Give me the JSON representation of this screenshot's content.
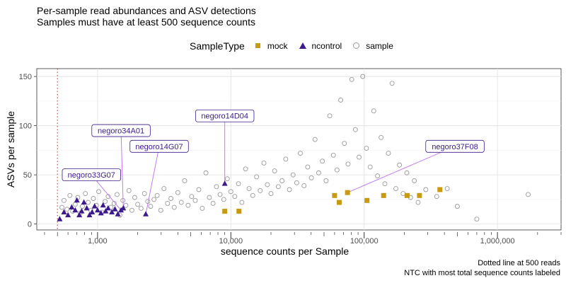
{
  "chart_data": {
    "type": "scatter",
    "title": "Per-sample read abundances and ASV detections",
    "subtitle": "Samples must have at least 500 sequence counts",
    "xlabel": "sequence counts per Sample",
    "ylabel": "ASVs per sample",
    "x_scale": "log10",
    "xlim": [
      350,
      3000000
    ],
    "ylim": [
      -6,
      158
    ],
    "x_ticks": [
      1000,
      10000,
      100000,
      1000000
    ],
    "x_tick_labels": [
      "1,000",
      "10,000",
      "100,000",
      "1,000,000"
    ],
    "y_ticks": [
      0,
      50,
      100,
      150
    ],
    "y_tick_labels": [
      "0",
      "50",
      "100",
      "150"
    ],
    "grid": true,
    "legend": {
      "title": "SampleType",
      "position": "top",
      "entries": [
        {
          "label": "mock",
          "color": "#c79a12",
          "shape": "square"
        },
        {
          "label": "ncontrol",
          "color": "#3c1a8c",
          "shape": "triangle"
        },
        {
          "label": "sample",
          "color": "#999999",
          "shape": "open-circle"
        }
      ]
    },
    "threshold_line": {
      "x": 500,
      "color": "#e8413c",
      "style": "dotted"
    },
    "series": [
      {
        "name": "mock",
        "points": [
          [
            9000,
            13
          ],
          [
            11500,
            13
          ],
          [
            60000,
            29
          ],
          [
            65000,
            22
          ],
          [
            75000,
            32
          ],
          [
            105000,
            24
          ],
          [
            140000,
            29
          ],
          [
            210000,
            29
          ],
          [
            260000,
            29
          ],
          [
            370000,
            35
          ]
        ]
      },
      {
        "name": "ncontrol",
        "points": [
          [
            520,
            5
          ],
          [
            560,
            12
          ],
          [
            600,
            9
          ],
          [
            640,
            17
          ],
          [
            680,
            14
          ],
          [
            700,
            24
          ],
          [
            730,
            9
          ],
          [
            760,
            13
          ],
          [
            790,
            22
          ],
          [
            830,
            16
          ],
          [
            870,
            9
          ],
          [
            910,
            12
          ],
          [
            950,
            18
          ],
          [
            1000,
            14
          ],
          [
            1060,
            11
          ],
          [
            1100,
            19
          ],
          [
            1150,
            13
          ],
          [
            1200,
            16
          ],
          [
            1280,
            12
          ],
          [
            1350,
            15
          ],
          [
            1420,
            10
          ],
          [
            1500,
            14
          ],
          [
            1560,
            16
          ],
          [
            2300,
            10
          ],
          [
            9000,
            41
          ]
        ]
      },
      {
        "name": "sample",
        "points": [
          [
            540,
            17
          ],
          [
            560,
            24
          ],
          [
            590,
            15
          ],
          [
            620,
            29
          ],
          [
            650,
            13
          ],
          [
            680,
            20
          ],
          [
            710,
            27
          ],
          [
            740,
            11
          ],
          [
            770,
            18
          ],
          [
            810,
            31
          ],
          [
            850,
            22
          ],
          [
            890,
            14
          ],
          [
            930,
            26
          ],
          [
            980,
            19
          ],
          [
            1020,
            33
          ],
          [
            1080,
            12
          ],
          [
            1140,
            23
          ],
          [
            1200,
            28
          ],
          [
            1260,
            17
          ],
          [
            1330,
            21
          ],
          [
            1400,
            30
          ],
          [
            1470,
            9
          ],
          [
            1550,
            24
          ],
          [
            1630,
            19
          ],
          [
            1720,
            34
          ],
          [
            1810,
            14
          ],
          [
            1900,
            27
          ],
          [
            2000,
            20
          ],
          [
            2120,
            16
          ],
          [
            2250,
            31
          ],
          [
            2380,
            23
          ],
          [
            2500,
            18
          ],
          [
            2650,
            25
          ],
          [
            2800,
            29
          ],
          [
            2980,
            14
          ],
          [
            3150,
            36
          ],
          [
            3350,
            21
          ],
          [
            3550,
            26
          ],
          [
            3760,
            17
          ],
          [
            4000,
            32
          ],
          [
            4250,
            22
          ],
          [
            4500,
            44
          ],
          [
            4780,
            19
          ],
          [
            5080,
            28
          ],
          [
            5400,
            24
          ],
          [
            5750,
            35
          ],
          [
            6100,
            16
          ],
          [
            6500,
            52
          ],
          [
            6900,
            27
          ],
          [
            7350,
            21
          ],
          [
            7800,
            38
          ],
          [
            8300,
            30
          ],
          [
            8850,
            25
          ],
          [
            9400,
            46
          ],
          [
            10000,
            33
          ],
          [
            10700,
            28
          ],
          [
            11400,
            41
          ],
          [
            12100,
            22
          ],
          [
            12900,
            56
          ],
          [
            13700,
            36
          ],
          [
            14600,
            29
          ],
          [
            15600,
            48
          ],
          [
            16600,
            34
          ],
          [
            17700,
            62
          ],
          [
            18800,
            40
          ],
          [
            20000,
            31
          ],
          [
            21300,
            54
          ],
          [
            22700,
            38
          ],
          [
            24200,
            44
          ],
          [
            25800,
            66
          ],
          [
            27500,
            35
          ],
          [
            29300,
            50
          ],
          [
            31200,
            42
          ],
          [
            33200,
            72
          ],
          [
            35400,
            39
          ],
          [
            37700,
            58
          ],
          [
            40200,
            47
          ],
          [
            42800,
            86
          ],
          [
            45600,
            52
          ],
          [
            48600,
            64
          ],
          [
            51800,
            44
          ],
          [
            55200,
            110
          ],
          [
            58800,
            70
          ],
          [
            62600,
            55
          ],
          [
            66700,
            126
          ],
          [
            71100,
            82
          ],
          [
            75700,
            61
          ],
          [
            80700,
            147
          ],
          [
            86000,
            96
          ],
          [
            91600,
            68
          ],
          [
            97600,
            150
          ],
          [
            104000,
            77
          ],
          [
            111000,
            58
          ],
          [
            118000,
            115
          ],
          [
            126000,
            49
          ],
          [
            134000,
            88
          ],
          [
            143000,
            41
          ],
          [
            152000,
            72
          ],
          [
            162000,
            143
          ],
          [
            173000,
            36
          ],
          [
            184000,
            60
          ],
          [
            196000,
            31
          ],
          [
            209000,
            52
          ],
          [
            223000,
            27
          ],
          [
            238000,
            44
          ],
          [
            254000,
            22
          ],
          [
            290000,
            35
          ],
          [
            350000,
            28
          ],
          [
            420000,
            36
          ],
          [
            500000,
            18
          ],
          [
            700000,
            5
          ],
          [
            1700000,
            30
          ]
        ]
      }
    ],
    "annotations": [
      {
        "label": "negoro33G07",
        "x": 1500,
        "y": 14,
        "box_x": 900,
        "box_y": 50
      },
      {
        "label": "negoro34A01",
        "x": 1560,
        "y": 16,
        "box_x": 1500,
        "box_y": 95
      },
      {
        "label": "negoro14G07",
        "x": 2300,
        "y": 10,
        "box_x": 2900,
        "box_y": 79
      },
      {
        "label": "negoro14D04",
        "x": 9000,
        "y": 41,
        "box_x": 9000,
        "box_y": 110
      },
      {
        "label": "negoro37F08",
        "x": 75000,
        "y": 32,
        "box_x": 480000,
        "box_y": 79
      }
    ],
    "captions": [
      "Dotted line at 500 reads",
      "NTC with most total sequence counts labeled"
    ]
  }
}
